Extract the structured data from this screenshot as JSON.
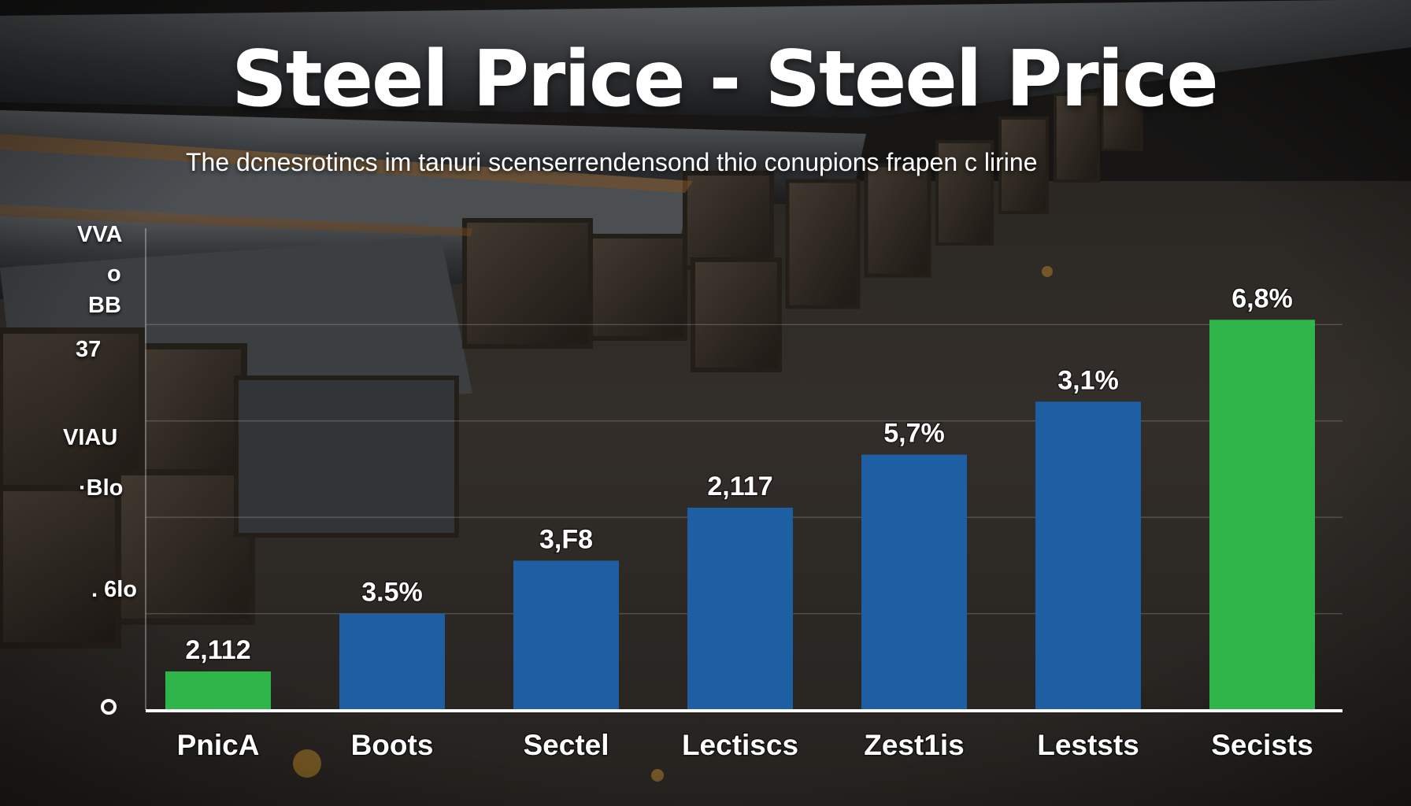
{
  "chart_data": {
    "type": "bar",
    "title": "Steel Price - Steel Price",
    "subtitle": "The dcnesrotincs im tanuri scenserrendensond thio conupions frapen c lirine",
    "categories": [
      "PnicA",
      "Boots",
      "Sectel",
      "Lectiscs",
      "Zest1is",
      "Leststs",
      "Secists"
    ],
    "values": [
      0.8,
      2.0,
      3.1,
      4.2,
      5.3,
      6.4,
      8.1
    ],
    "data_labels": [
      "2,112",
      "3.5%",
      "3,F8",
      "2,117",
      "5,7%",
      "3,1%",
      "6,8%"
    ],
    "ylim": [
      0,
      10
    ],
    "ytick_labels": [
      "VVA",
      "o",
      "BB",
      "37",
      "VIAU",
      "·Blo",
      ". 6lo",
      "o"
    ],
    "grid": true,
    "colors": {
      "highlight": "#2fb54a",
      "default": "#1e5ea3",
      "text": "#ffffff",
      "axis": "#ffffff"
    },
    "highlight_indices": [
      0,
      6
    ]
  }
}
